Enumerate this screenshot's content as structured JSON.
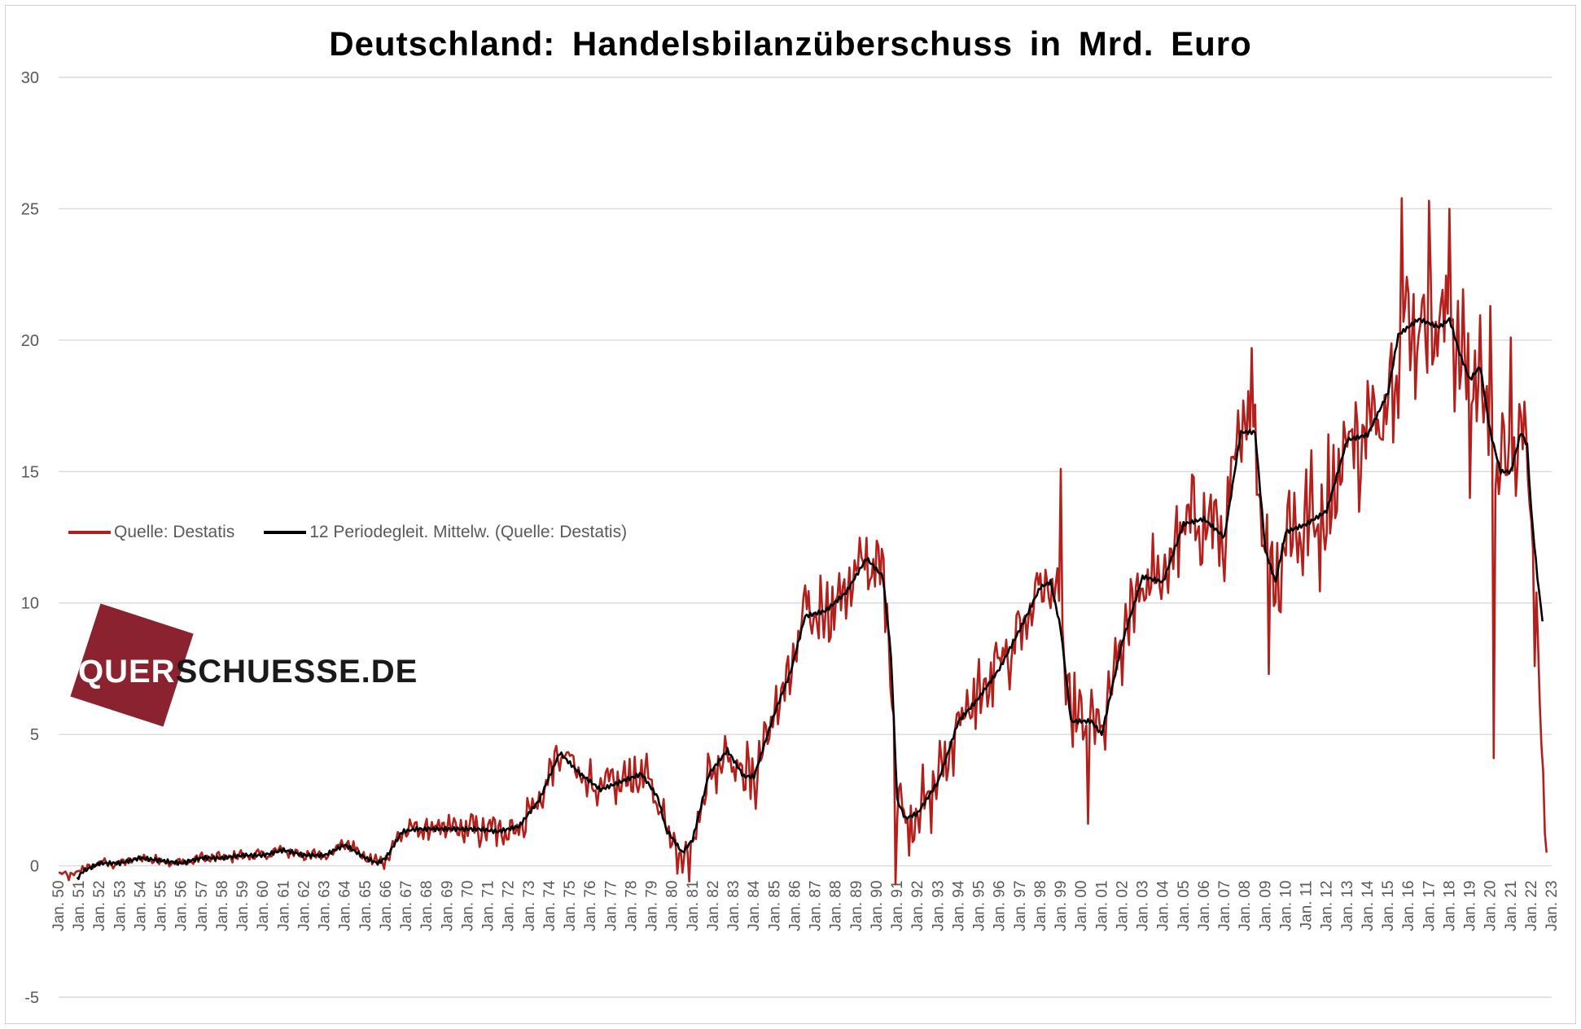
{
  "chart_data": {
    "type": "line",
    "title": "Deutschland:  Handelsbilanzüberschuss  in  Mrd. Euro",
    "xlabel": "",
    "ylabel": "",
    "ylim": [
      -5,
      30
    ],
    "yticks": [
      30,
      25,
      20,
      15,
      10,
      5,
      0,
      -5
    ],
    "xlim": [
      1950,
      2023
    ],
    "xtick_labels": [
      "Jan. 50",
      "Jan. 51",
      "Jan. 52",
      "Jan. 53",
      "Jan. 54",
      "Jan. 55",
      "Jan. 56",
      "Jan. 57",
      "Jan. 58",
      "Jan. 59",
      "Jan. 60",
      "Jan. 61",
      "Jan. 62",
      "Jan. 63",
      "Jan. 64",
      "Jan. 65",
      "Jan. 66",
      "Jan. 67",
      "Jan. 68",
      "Jan. 69",
      "Jan. 70",
      "Jan. 71",
      "Jan. 72",
      "Jan. 73",
      "Jan. 74",
      "Jan. 75",
      "Jan. 76",
      "Jan. 77",
      "Jan. 78",
      "Jan. 79",
      "Jan. 80",
      "Jan. 81",
      "Jan. 82",
      "Jan. 83",
      "Jan. 84",
      "Jan. 85",
      "Jan. 86",
      "Jan. 87",
      "Jan. 88",
      "Jan. 89",
      "Jan. 90",
      "Jan. 91",
      "Jan. 92",
      "Jan. 93",
      "Jan. 94",
      "Jan. 95",
      "Jan. 96",
      "Jan. 97",
      "Jan. 98",
      "Jan. 99",
      "Jan. 00",
      "Jan. 01",
      "Jan. 02",
      "Jan. 03",
      "Jan. 04",
      "Jan. 05",
      "Jan. 06",
      "Jan. 07",
      "Jan. 08",
      "Jan. 09",
      "Jan. 10",
      "Jan. 11",
      "Jan. 12",
      "Jan. 13",
      "Jan. 14",
      "Jan. 15",
      "Jan. 16",
      "Jan. 17",
      "Jan. 18",
      "Jan. 19",
      "Jan. 20",
      "Jan. 21",
      "Jan. 22",
      "Jan. 23"
    ],
    "grid": true,
    "legend_position": "left-middle",
    "series": [
      {
        "name": "Quelle: Destatis",
        "color": "#b3201b",
        "style": "monthly",
        "anchors": [
          [
            1950.0,
            -0.3
          ],
          [
            1950.5,
            -0.4
          ],
          [
            1951.0,
            -0.2
          ],
          [
            1952.0,
            0.1
          ],
          [
            1953.0,
            0.1
          ],
          [
            1954.0,
            0.3
          ],
          [
            1955.0,
            0.2
          ],
          [
            1956.0,
            0.1
          ],
          [
            1957.0,
            0.3
          ],
          [
            1958.0,
            0.3
          ],
          [
            1959.0,
            0.4
          ],
          [
            1960.0,
            0.4
          ],
          [
            1961.0,
            0.6
          ],
          [
            1962.0,
            0.4
          ],
          [
            1963.0,
            0.4
          ],
          [
            1964.0,
            0.9
          ],
          [
            1965.0,
            0.3
          ],
          [
            1965.6,
            0.1
          ],
          [
            1966.0,
            0.3
          ],
          [
            1966.8,
            1.3
          ],
          [
            1967.5,
            1.4
          ],
          [
            1968.5,
            1.4
          ],
          [
            1969.5,
            1.4
          ],
          [
            1970.5,
            1.4
          ],
          [
            1971.5,
            1.3
          ],
          [
            1972.5,
            1.5
          ],
          [
            1973.5,
            2.5
          ],
          [
            1974.5,
            4.3
          ],
          [
            1975.5,
            3.5
          ],
          [
            1976.5,
            2.9
          ],
          [
            1977.5,
            3.2
          ],
          [
            1978.5,
            3.5
          ],
          [
            1979.3,
            2.6
          ],
          [
            1979.7,
            1.4
          ],
          [
            1980.5,
            0.5
          ],
          [
            1981.0,
            1.0
          ],
          [
            1981.8,
            3.5
          ],
          [
            1982.7,
            4.4
          ],
          [
            1983.5,
            3.4
          ],
          [
            1984.0,
            3.4
          ],
          [
            1985.0,
            5.8
          ],
          [
            1985.8,
            7.4
          ],
          [
            1986.5,
            9.5
          ],
          [
            1987.5,
            9.7
          ],
          [
            1988.5,
            10.4
          ],
          [
            1989.5,
            11.7
          ],
          [
            1990.3,
            11.0
          ],
          [
            1990.7,
            8.0
          ],
          [
            1991.0,
            2.5
          ],
          [
            1991.4,
            1.8
          ],
          [
            1992.0,
            2.0
          ],
          [
            1993.0,
            3.2
          ],
          [
            1994.0,
            5.5
          ],
          [
            1995.0,
            6.4
          ],
          [
            1996.0,
            7.5
          ],
          [
            1997.0,
            9.0
          ],
          [
            1998.0,
            10.6
          ],
          [
            1998.5,
            10.8
          ],
          [
            1999.0,
            9.0
          ],
          [
            1999.5,
            5.5
          ],
          [
            2000.5,
            5.5
          ],
          [
            2001.0,
            5.0
          ],
          [
            2002.0,
            8.5
          ],
          [
            2003.0,
            11.0
          ],
          [
            2004.0,
            10.8
          ],
          [
            2005.0,
            13.0
          ],
          [
            2006.0,
            13.2
          ],
          [
            2007.0,
            12.5
          ],
          [
            2007.8,
            16.5
          ],
          [
            2008.5,
            16.5
          ],
          [
            2009.0,
            12.0
          ],
          [
            2009.5,
            10.8
          ],
          [
            2010.0,
            12.7
          ],
          [
            2011.0,
            13.0
          ],
          [
            2012.0,
            13.5
          ],
          [
            2013.0,
            16.2
          ],
          [
            2014.0,
            16.4
          ],
          [
            2015.0,
            18.0
          ],
          [
            2015.5,
            20.2
          ],
          [
            2016.5,
            20.8
          ],
          [
            2017.5,
            20.5
          ],
          [
            2018.0,
            20.8
          ],
          [
            2018.5,
            19.5
          ],
          [
            2019.0,
            18.5
          ],
          [
            2019.5,
            19.0
          ],
          [
            2020.0,
            16.5
          ],
          [
            2020.5,
            15.0
          ],
          [
            2021.0,
            15.0
          ],
          [
            2021.5,
            16.5
          ],
          [
            2021.8,
            16.0
          ],
          [
            2022.0,
            13.5
          ],
          [
            2022.3,
            9.0
          ],
          [
            2022.5,
            4.0
          ],
          [
            2022.7,
            1.5
          ],
          [
            2022.8,
            0.5
          ]
        ],
        "amplitude": [
          [
            1950,
            0.25
          ],
          [
            1965,
            0.4
          ],
          [
            1967,
            0.6
          ],
          [
            1973,
            1.2
          ],
          [
            1980,
            1.3
          ],
          [
            1985,
            2.0
          ],
          [
            1990,
            2.2
          ],
          [
            1992,
            2.0
          ],
          [
            1998,
            2.2
          ],
          [
            2004,
            2.4
          ],
          [
            2009,
            3.0
          ],
          [
            2014,
            3.8
          ],
          [
            2016,
            4.2
          ],
          [
            2019,
            3.5
          ],
          [
            2021,
            3.0
          ],
          [
            2022.8,
            1.2
          ]
        ],
        "spikes": [
          [
            1980.8,
            -0.6
          ],
          [
            1990.95,
            -0.7
          ],
          [
            1999.0,
            15.1
          ],
          [
            2000.3,
            1.6
          ],
          [
            2008.3,
            19.7
          ],
          [
            2009.2,
            7.3
          ],
          [
            2015.7,
            25.4
          ],
          [
            2017.0,
            25.3
          ],
          [
            2018.0,
            25.0
          ],
          [
            2019.0,
            14.0
          ],
          [
            2020.2,
            4.1
          ],
          [
            2020.0,
            21.3
          ],
          [
            2021.0,
            20.1
          ],
          [
            2022.2,
            7.6
          ],
          [
            2022.6,
            3.6
          ],
          [
            2022.78,
            0.5
          ]
        ]
      },
      {
        "name": "12 Periodegleit. Mittelw. (Quelle: Destatis)",
        "color": "#000000",
        "style": "smooth",
        "points": [
          [
            1950.9,
            -0.5
          ],
          [
            1951.2,
            -0.2
          ],
          [
            1952.0,
            0.1
          ],
          [
            1953.0,
            0.1
          ],
          [
            1954.0,
            0.3
          ],
          [
            1955.0,
            0.2
          ],
          [
            1956.0,
            0.1
          ],
          [
            1957.0,
            0.3
          ],
          [
            1958.0,
            0.3
          ],
          [
            1959.0,
            0.4
          ],
          [
            1960.0,
            0.4
          ],
          [
            1961.0,
            0.6
          ],
          [
            1962.0,
            0.4
          ],
          [
            1963.0,
            0.4
          ],
          [
            1964.0,
            0.8
          ],
          [
            1965.0,
            0.3
          ],
          [
            1965.6,
            0.1
          ],
          [
            1966.0,
            0.3
          ],
          [
            1966.8,
            1.3
          ],
          [
            1967.5,
            1.4
          ],
          [
            1968.5,
            1.4
          ],
          [
            1969.5,
            1.4
          ],
          [
            1970.5,
            1.4
          ],
          [
            1971.5,
            1.3
          ],
          [
            1972.5,
            1.5
          ],
          [
            1973.5,
            2.5
          ],
          [
            1974.5,
            4.3
          ],
          [
            1975.5,
            3.5
          ],
          [
            1976.5,
            2.9
          ],
          [
            1977.5,
            3.2
          ],
          [
            1978.5,
            3.5
          ],
          [
            1979.3,
            2.6
          ],
          [
            1979.7,
            1.4
          ],
          [
            1980.5,
            0.5
          ],
          [
            1981.0,
            1.0
          ],
          [
            1981.8,
            3.5
          ],
          [
            1982.7,
            4.4
          ],
          [
            1983.5,
            3.4
          ],
          [
            1984.0,
            3.4
          ],
          [
            1985.0,
            5.8
          ],
          [
            1985.8,
            7.4
          ],
          [
            1986.5,
            9.5
          ],
          [
            1987.5,
            9.7
          ],
          [
            1988.5,
            10.4
          ],
          [
            1989.5,
            11.7
          ],
          [
            1990.3,
            11.0
          ],
          [
            1990.7,
            8.0
          ],
          [
            1991.0,
            2.5
          ],
          [
            1991.4,
            1.8
          ],
          [
            1992.0,
            2.0
          ],
          [
            1993.0,
            3.2
          ],
          [
            1994.0,
            5.5
          ],
          [
            1995.0,
            6.4
          ],
          [
            1996.0,
            7.5
          ],
          [
            1997.0,
            9.0
          ],
          [
            1998.0,
            10.6
          ],
          [
            1998.5,
            10.8
          ],
          [
            1999.0,
            9.0
          ],
          [
            1999.5,
            5.5
          ],
          [
            2000.5,
            5.5
          ],
          [
            2001.0,
            5.0
          ],
          [
            2002.0,
            8.5
          ],
          [
            2003.0,
            11.0
          ],
          [
            2004.0,
            10.8
          ],
          [
            2005.0,
            13.0
          ],
          [
            2006.0,
            13.2
          ],
          [
            2007.0,
            12.5
          ],
          [
            2007.8,
            16.5
          ],
          [
            2008.5,
            16.5
          ],
          [
            2009.0,
            12.0
          ],
          [
            2009.5,
            10.8
          ],
          [
            2010.0,
            12.7
          ],
          [
            2011.0,
            13.0
          ],
          [
            2012.0,
            13.5
          ],
          [
            2013.0,
            16.2
          ],
          [
            2014.0,
            16.4
          ],
          [
            2015.0,
            18.0
          ],
          [
            2015.5,
            20.2
          ],
          [
            2016.5,
            20.8
          ],
          [
            2017.5,
            20.5
          ],
          [
            2018.0,
            20.8
          ],
          [
            2018.5,
            19.5
          ],
          [
            2019.0,
            18.5
          ],
          [
            2019.5,
            19.0
          ],
          [
            2020.0,
            16.5
          ],
          [
            2020.5,
            15.0
          ],
          [
            2021.0,
            15.0
          ],
          [
            2021.5,
            16.5
          ],
          [
            2021.8,
            16.0
          ],
          [
            2022.0,
            13.5
          ],
          [
            2022.3,
            11.0
          ],
          [
            2022.55,
            9.3
          ]
        ]
      }
    ]
  },
  "legend": {
    "items": [
      {
        "label": "Quelle: Destatis",
        "color": "#b3201b"
      },
      {
        "label": "12 Periodegleit. Mittelw. (Quelle: Destatis)",
        "color": "#000000"
      }
    ]
  },
  "watermark": {
    "part_a": "QUER",
    "part_b": "SCHUESSE.DE",
    "box_color": "#8b2230"
  }
}
